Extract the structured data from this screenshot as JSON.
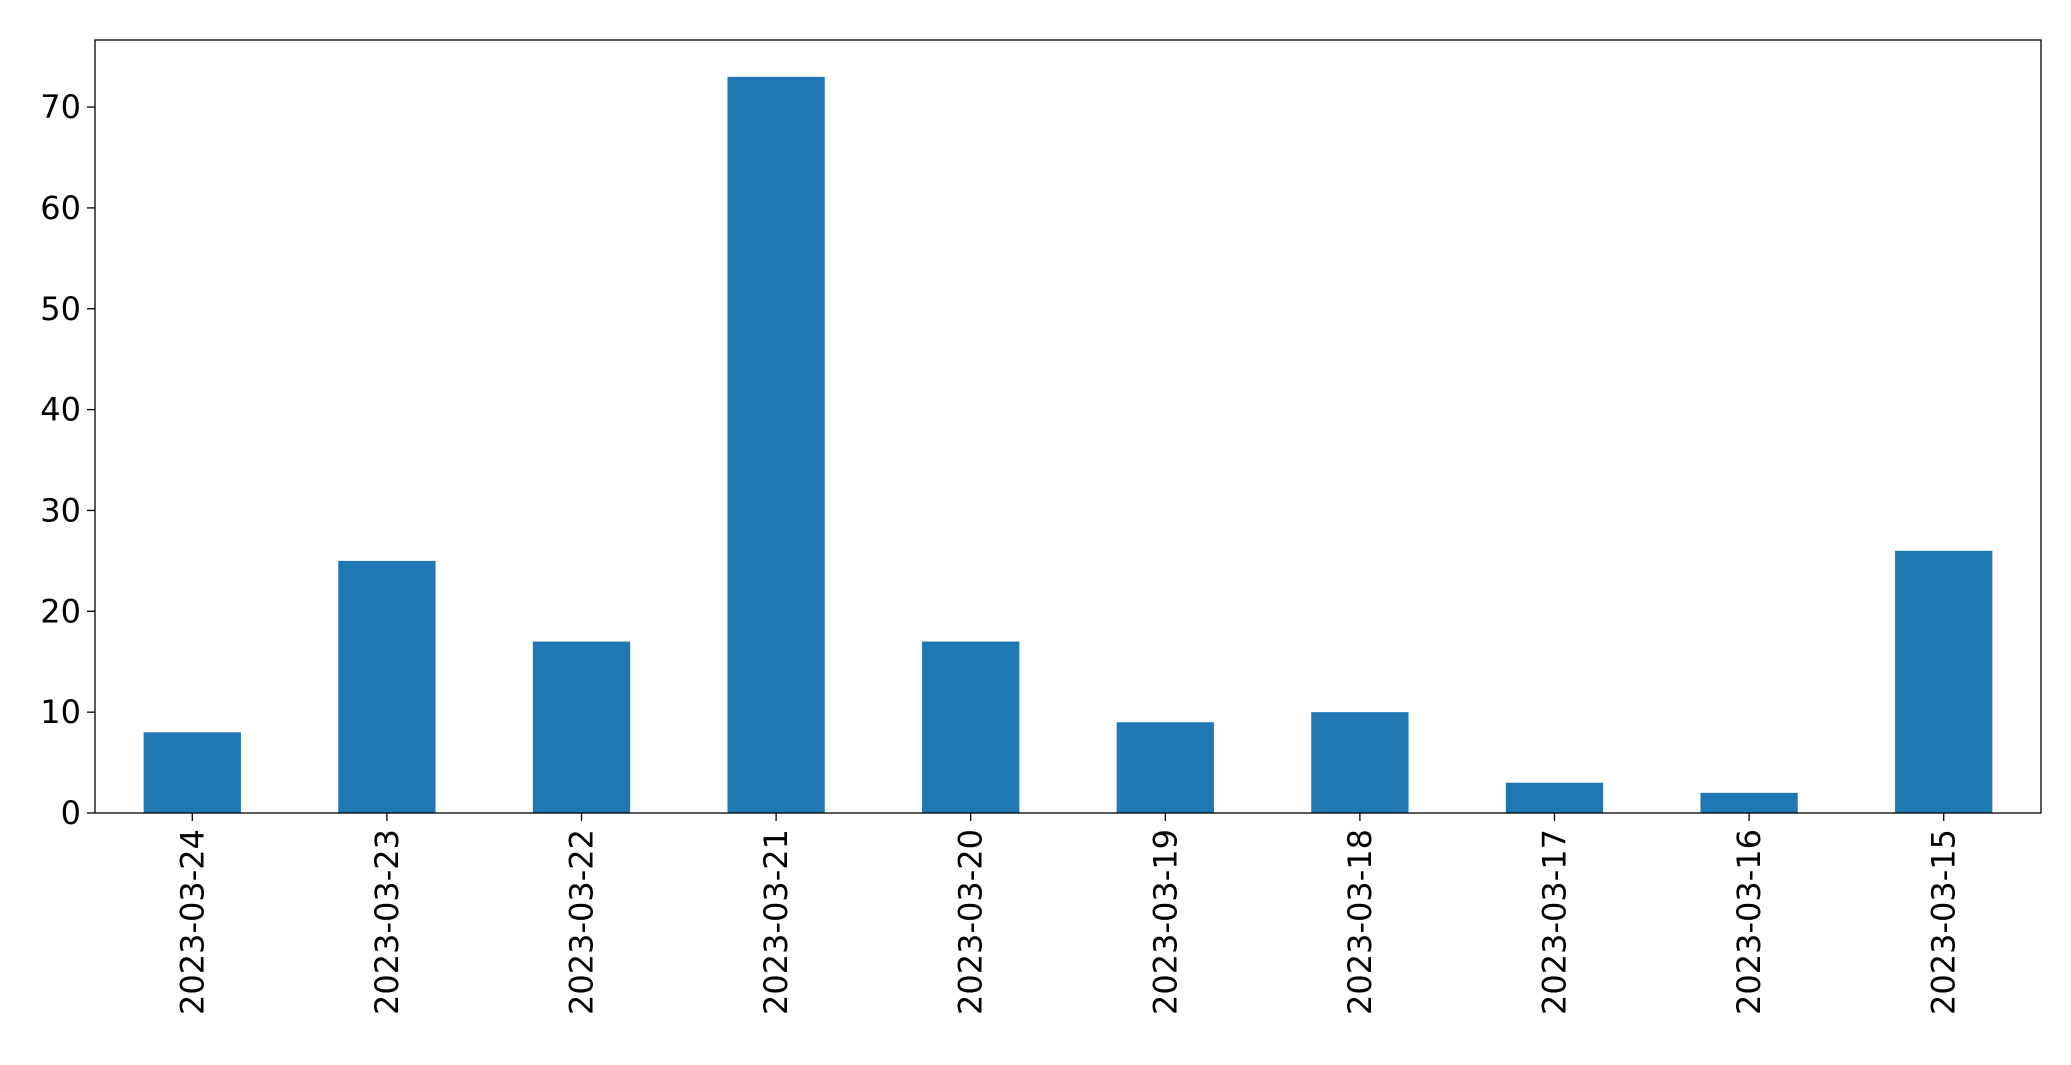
{
  "chart_data": {
    "type": "bar",
    "title": "",
    "xlabel": "",
    "ylabel": "",
    "categories": [
      "2023-03-24",
      "2023-03-23",
      "2023-03-22",
      "2023-03-21",
      "2023-03-20",
      "2023-03-19",
      "2023-03-18",
      "2023-03-17",
      "2023-03-16",
      "2023-03-15"
    ],
    "values": [
      8,
      25,
      17,
      73,
      17,
      9,
      10,
      3,
      2,
      26
    ],
    "ylim": [
      0,
      76.65
    ],
    "yticks": [
      0,
      10,
      20,
      30,
      40,
      50,
      60,
      70
    ],
    "ytick_labels": [
      "0",
      "10",
      "20",
      "30",
      "40",
      "50",
      "60",
      "70"
    ],
    "bar_color": "#1f77b4",
    "grid": false,
    "legend": "none"
  }
}
